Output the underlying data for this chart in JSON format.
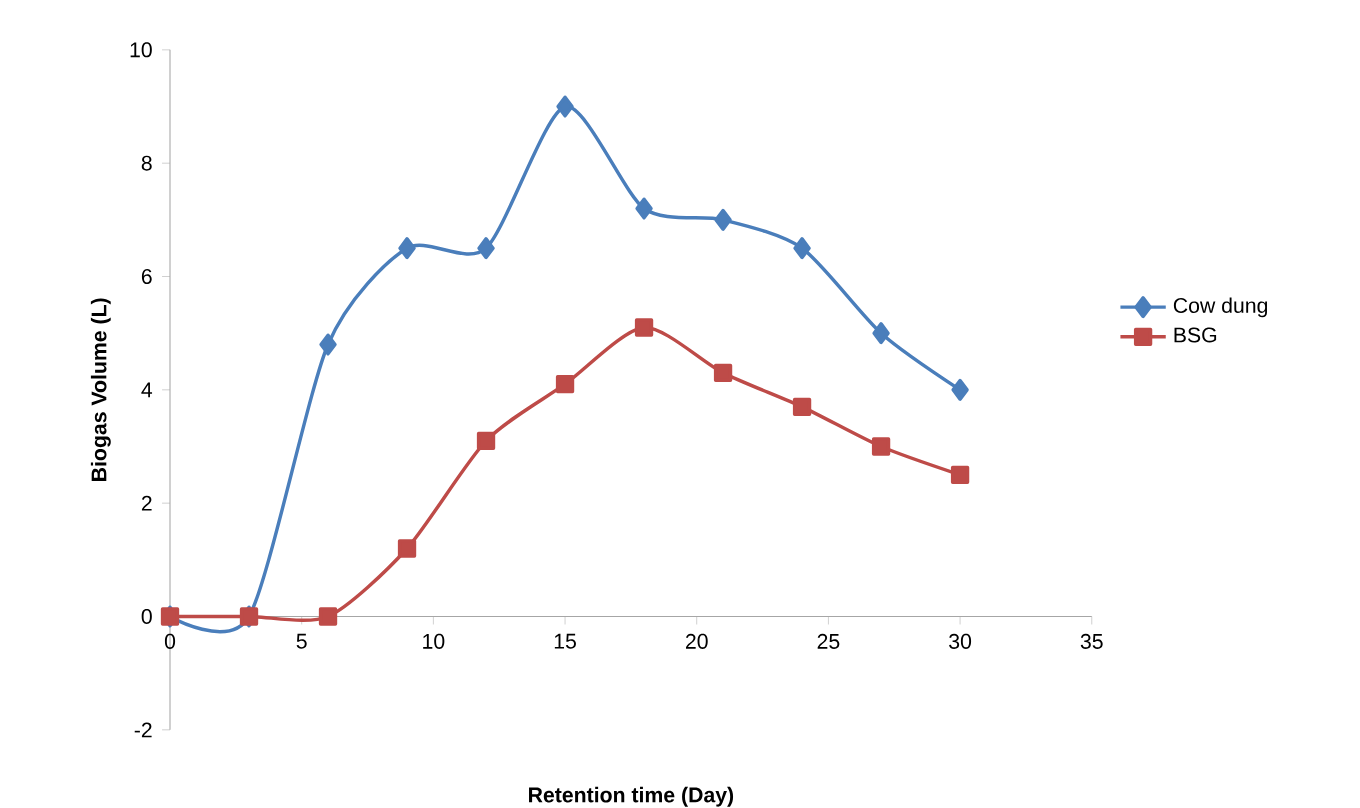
{
  "chart_data": {
    "type": "line",
    "xlabel": "Retention time (Day)",
    "ylabel": "Biogas Volume (L)",
    "xlim": [
      0,
      35
    ],
    "xticks": [
      0,
      5,
      10,
      15,
      20,
      25,
      30,
      35
    ],
    "ylim": [
      -2,
      10
    ],
    "yticks": [
      -2,
      0,
      2,
      4,
      6,
      8,
      10
    ],
    "legend": "right",
    "grid": false,
    "series": [
      {
        "name": "Cow dung",
        "color": "#4a7ebb",
        "marker": "diamond",
        "x": [
          0,
          3,
          6,
          9,
          12,
          15,
          18,
          21,
          24,
          27,
          30
        ],
        "values": [
          0,
          0,
          4.8,
          6.5,
          6.5,
          9.0,
          7.2,
          7.0,
          6.5,
          5.0,
          4.0
        ]
      },
      {
        "name": "BSG",
        "color": "#be4b48",
        "marker": "square",
        "x": [
          0,
          3,
          6,
          9,
          12,
          15,
          18,
          21,
          24,
          27,
          30
        ],
        "values": [
          0,
          0,
          0,
          1.2,
          3.1,
          4.1,
          5.1,
          4.3,
          3.7,
          3.0,
          2.5
        ]
      }
    ]
  }
}
